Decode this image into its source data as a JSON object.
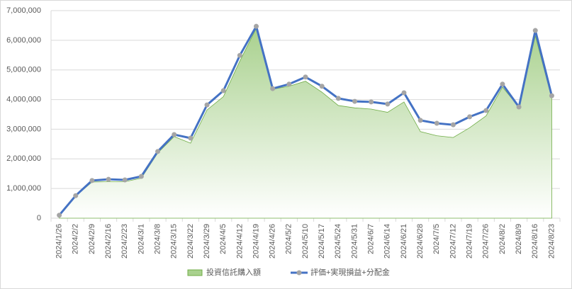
{
  "chart_data": {
    "type": "area_line",
    "categories": [
      "2024/1/26",
      "2024/2/2",
      "2024/2/9",
      "2024/2/16",
      "2024/2/23",
      "2024/3/1",
      "2024/3/8",
      "2024/3/15",
      "2024/3/22",
      "2024/3/29",
      "2024/4/5",
      "2024/4/12",
      "2024/4/19",
      "2024/4/26",
      "2024/5/2",
      "2024/5/10",
      "2024/5/17",
      "2024/5/24",
      "2024/5/31",
      "2024/6/7",
      "2024/6/14",
      "2024/6/21",
      "2024/6/28",
      "2024/7/5",
      "2024/7/12",
      "2024/7/19",
      "2024/7/26",
      "2024/8/2",
      "2024/8/9",
      "2024/8/16",
      "2024/8/23"
    ],
    "series": [
      {
        "name": "投資信託購入額",
        "kind": "area",
        "color": "#70ad47",
        "values": [
          100000,
          750000,
          1220000,
          1230000,
          1230000,
          1350000,
          2200000,
          2750000,
          2530000,
          3650000,
          4100000,
          5300000,
          6400000,
          4350000,
          4450000,
          4620000,
          4250000,
          3800000,
          3720000,
          3680000,
          3570000,
          3920000,
          2920000,
          2780000,
          2720000,
          3050000,
          3450000,
          4420000,
          3750000,
          6150000,
          4050000
        ]
      },
      {
        "name": "評価+実現損益+分配金",
        "kind": "line",
        "color": "#4472c4",
        "marker_color": "#a5a5a5",
        "values": [
          100000,
          760000,
          1270000,
          1310000,
          1290000,
          1410000,
          2250000,
          2820000,
          2700000,
          3820000,
          4300000,
          5490000,
          6470000,
          4370000,
          4520000,
          4760000,
          4450000,
          4040000,
          3940000,
          3920000,
          3850000,
          4230000,
          3300000,
          3200000,
          3150000,
          3420000,
          3630000,
          4520000,
          3750000,
          6330000,
          4130000
        ]
      }
    ],
    "ylim": [
      0,
      7000000
    ],
    "yticks": [
      0,
      {
        "value": 1000000,
        "label": "1,000,000"
      },
      {
        "value": 2000000,
        "label": "2,000,000"
      },
      {
        "value": 3000000,
        "label": "3,000,000"
      },
      {
        "value": 4000000,
        "label": "4,000,000"
      },
      {
        "value": 5000000,
        "label": "5,000,000"
      },
      {
        "value": 6000000,
        "label": "6,000,000"
      },
      {
        "value": 7000000,
        "label": "7,000,000"
      }
    ],
    "grid": true,
    "legend": "bottom"
  }
}
